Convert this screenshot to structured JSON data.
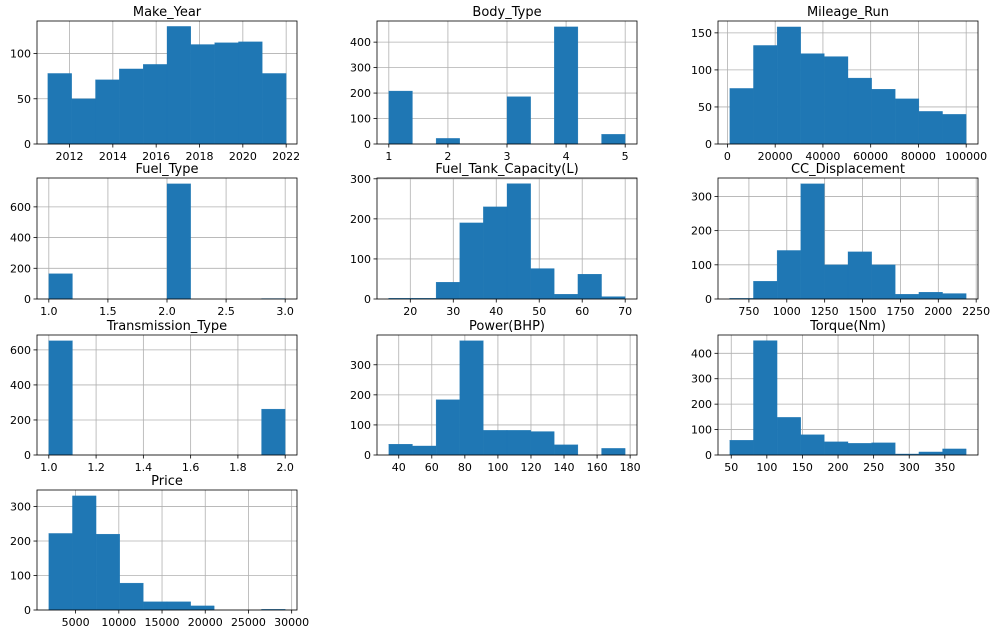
{
  "figure": {
    "background": "#ffffff",
    "bar_color": "#1f77b4"
  },
  "chart_data": [
    {
      "type": "bar",
      "title": "Make_Year",
      "bin_edges": [
        2011.0,
        2012.1,
        2013.2,
        2014.3,
        2015.4,
        2016.5,
        2017.6,
        2018.7,
        2019.8,
        2020.9,
        2022.0
      ],
      "values": [
        78,
        50,
        71,
        83,
        88,
        130,
        110,
        112,
        113,
        78
      ],
      "xlim": [
        2010.5,
        2022.5
      ],
      "ylim": [
        0,
        136
      ],
      "xticks": [
        2012,
        2014,
        2016,
        2018,
        2020,
        2022
      ],
      "yticks": [
        0,
        50,
        100
      ],
      "xticklabels": [
        "2012",
        "2014",
        "2016",
        "2018",
        "2020",
        "2022"
      ],
      "yticklabels": [
        "0",
        "50",
        "100"
      ],
      "grid": true
    },
    {
      "type": "bar",
      "title": "Body_Type",
      "bin_edges": [
        1.0,
        1.4,
        1.8,
        2.2,
        2.6,
        3.0,
        3.4,
        3.8,
        4.2,
        4.6,
        5.0
      ],
      "values": [
        208,
        0,
        22,
        0,
        0,
        186,
        0,
        460,
        0,
        38
      ],
      "xlim": [
        0.8,
        5.2
      ],
      "ylim": [
        0,
        483
      ],
      "xticks": [
        1,
        2,
        3,
        4,
        5
      ],
      "yticks": [
        0,
        100,
        200,
        300,
        400
      ],
      "xticklabels": [
        "1",
        "2",
        "3",
        "4",
        "5"
      ],
      "yticklabels": [
        "0",
        "100",
        "200",
        "300",
        "400"
      ],
      "grid": true
    },
    {
      "type": "bar",
      "title": "Mileage_Run",
      "bin_edges": [
        1000,
        10900,
        20800,
        30700,
        40600,
        50500,
        60400,
        70300,
        80200,
        90100,
        100000
      ],
      "values": [
        75,
        133,
        158,
        122,
        118,
        89,
        74,
        61,
        44,
        40
      ],
      "xlim": [
        -3950,
        104950
      ],
      "ylim": [
        0,
        166
      ],
      "xticks": [
        0,
        20000,
        40000,
        60000,
        80000,
        100000
      ],
      "yticks": [
        0,
        50,
        100,
        150
      ],
      "xticklabels": [
        "0",
        "20000",
        "40000",
        "60000",
        "80000",
        "100000"
      ],
      "yticklabels": [
        "0",
        "50",
        "100",
        "150"
      ],
      "grid": true
    },
    {
      "type": "bar",
      "title": "Fuel_Type",
      "bin_edges": [
        1.0,
        1.2,
        1.4,
        1.6,
        1.8,
        2.0,
        2.2,
        2.4,
        2.6,
        2.8,
        3.0
      ],
      "values": [
        165,
        0,
        0,
        0,
        0,
        750,
        0,
        0,
        0,
        3
      ],
      "xlim": [
        0.9,
        3.1
      ],
      "ylim": [
        0,
        788
      ],
      "xticks": [
        1.0,
        1.5,
        2.0,
        2.5,
        3.0
      ],
      "yticks": [
        0,
        200,
        400,
        600
      ],
      "xticklabels": [
        "1.0",
        "1.5",
        "2.0",
        "2.5",
        "3.0"
      ],
      "yticklabels": [
        "0",
        "200",
        "400",
        "600"
      ],
      "grid": true
    },
    {
      "type": "bar",
      "title": "Fuel_Tank_Capacity(L)",
      "bin_edges": [
        15,
        20.5,
        26,
        31.5,
        37,
        42.5,
        48,
        53.5,
        59,
        64.5,
        70
      ],
      "values": [
        2,
        2,
        42,
        190,
        230,
        288,
        76,
        12,
        62,
        6
      ],
      "xlim": [
        12.25,
        72.75
      ],
      "ylim": [
        0,
        302
      ],
      "xticks": [
        20,
        30,
        40,
        50,
        60,
        70
      ],
      "yticks": [
        0,
        100,
        200,
        300
      ],
      "xticklabels": [
        "20",
        "30",
        "40",
        "50",
        "60",
        "70"
      ],
      "yticklabels": [
        "0",
        "100",
        "200",
        "300"
      ],
      "grid": true
    },
    {
      "type": "bar",
      "title": "CC_Displacement",
      "bin_edges": [
        624,
        780,
        936,
        1092,
        1248,
        1404,
        1560,
        1716,
        1872,
        2028,
        2184
      ],
      "values": [
        2,
        52,
        142,
        337,
        100,
        138,
        100,
        14,
        20,
        16
      ],
      "xlim": [
        546,
        2262
      ],
      "ylim": [
        0,
        354
      ],
      "xticks": [
        750,
        1000,
        1250,
        1500,
        1750,
        2000,
        2250
      ],
      "yticks": [
        0,
        100,
        200,
        300
      ],
      "xticklabels": [
        "750",
        "1000",
        "1250",
        "1500",
        "1750",
        "2000",
        "2250"
      ],
      "yticklabels": [
        "0",
        "100",
        "200",
        "300"
      ],
      "grid": true
    },
    {
      "type": "bar",
      "title": "Transmission_Type",
      "bin_edges": [
        1.0,
        1.1,
        1.2,
        1.3,
        1.4,
        1.5,
        1.6,
        1.7,
        1.8,
        1.9,
        2.0
      ],
      "values": [
        652,
        0,
        0,
        0,
        0,
        0,
        0,
        0,
        0,
        262
      ],
      "xlim": [
        0.95,
        2.05
      ],
      "ylim": [
        0,
        685
      ],
      "xticks": [
        1.0,
        1.2,
        1.4,
        1.6,
        1.8,
        2.0
      ],
      "yticks": [
        0,
        200,
        400,
        600
      ],
      "xticklabels": [
        "1.0",
        "1.2",
        "1.4",
        "1.6",
        "1.8",
        "2.0"
      ],
      "yticklabels": [
        "0",
        "200",
        "400",
        "600"
      ],
      "grid": true
    },
    {
      "type": "bar",
      "title": "Power(BHP)",
      "bin_edges": [
        34.0,
        48.3,
        62.6,
        76.9,
        91.2,
        105.5,
        119.8,
        134.1,
        148.4,
        162.7,
        177.0
      ],
      "values": [
        36,
        30,
        184,
        380,
        82,
        82,
        78,
        34,
        0,
        22
      ],
      "xlim": [
        26.85,
        184.15
      ],
      "ylim": [
        0,
        399
      ],
      "xticks": [
        40,
        60,
        80,
        100,
        120,
        140,
        160,
        180
      ],
      "yticks": [
        0,
        100,
        200,
        300
      ],
      "xticklabels": [
        "40",
        "60",
        "80",
        "100",
        "120",
        "140",
        "160",
        "180"
      ],
      "yticklabels": [
        "0",
        "100",
        "200",
        "300"
      ],
      "grid": true
    },
    {
      "type": "bar",
      "title": "Torque(Nm)",
      "bin_edges": [
        48,
        81.2,
        114.4,
        147.6,
        180.8,
        214.0,
        247.2,
        280.4,
        313.6,
        346.8,
        380.0
      ],
      "values": [
        58,
        450,
        148,
        80,
        52,
        46,
        48,
        4,
        12,
        24
      ],
      "xlim": [
        31.4,
        396.6
      ],
      "ylim": [
        0,
        472
      ],
      "xticks": [
        50,
        100,
        150,
        200,
        250,
        300,
        350
      ],
      "yticks": [
        0,
        100,
        200,
        300,
        400
      ],
      "xticklabels": [
        "50",
        "100",
        "150",
        "200",
        "250",
        "300",
        "350"
      ],
      "yticklabels": [
        "0",
        "100",
        "200",
        "300",
        "400"
      ],
      "grid": true
    },
    {
      "type": "bar",
      "title": "Price",
      "bin_edges": [
        1900,
        4635,
        7370,
        10105,
        12840,
        15575,
        18310,
        21045,
        23780,
        26515,
        29250
      ],
      "values": [
        222,
        331,
        220,
        78,
        24,
        24,
        12,
        0,
        0,
        2
      ],
      "xlim": [
        532.5,
        30617.5
      ],
      "ylim": [
        0,
        348
      ],
      "xticks": [
        5000,
        10000,
        15000,
        20000,
        25000,
        30000
      ],
      "yticks": [
        0,
        100,
        200,
        300
      ],
      "xticklabels": [
        "5000",
        "10000",
        "15000",
        "20000",
        "25000",
        "30000"
      ],
      "yticklabels": [
        "0",
        "100",
        "200",
        "300"
      ],
      "grid": true
    }
  ]
}
